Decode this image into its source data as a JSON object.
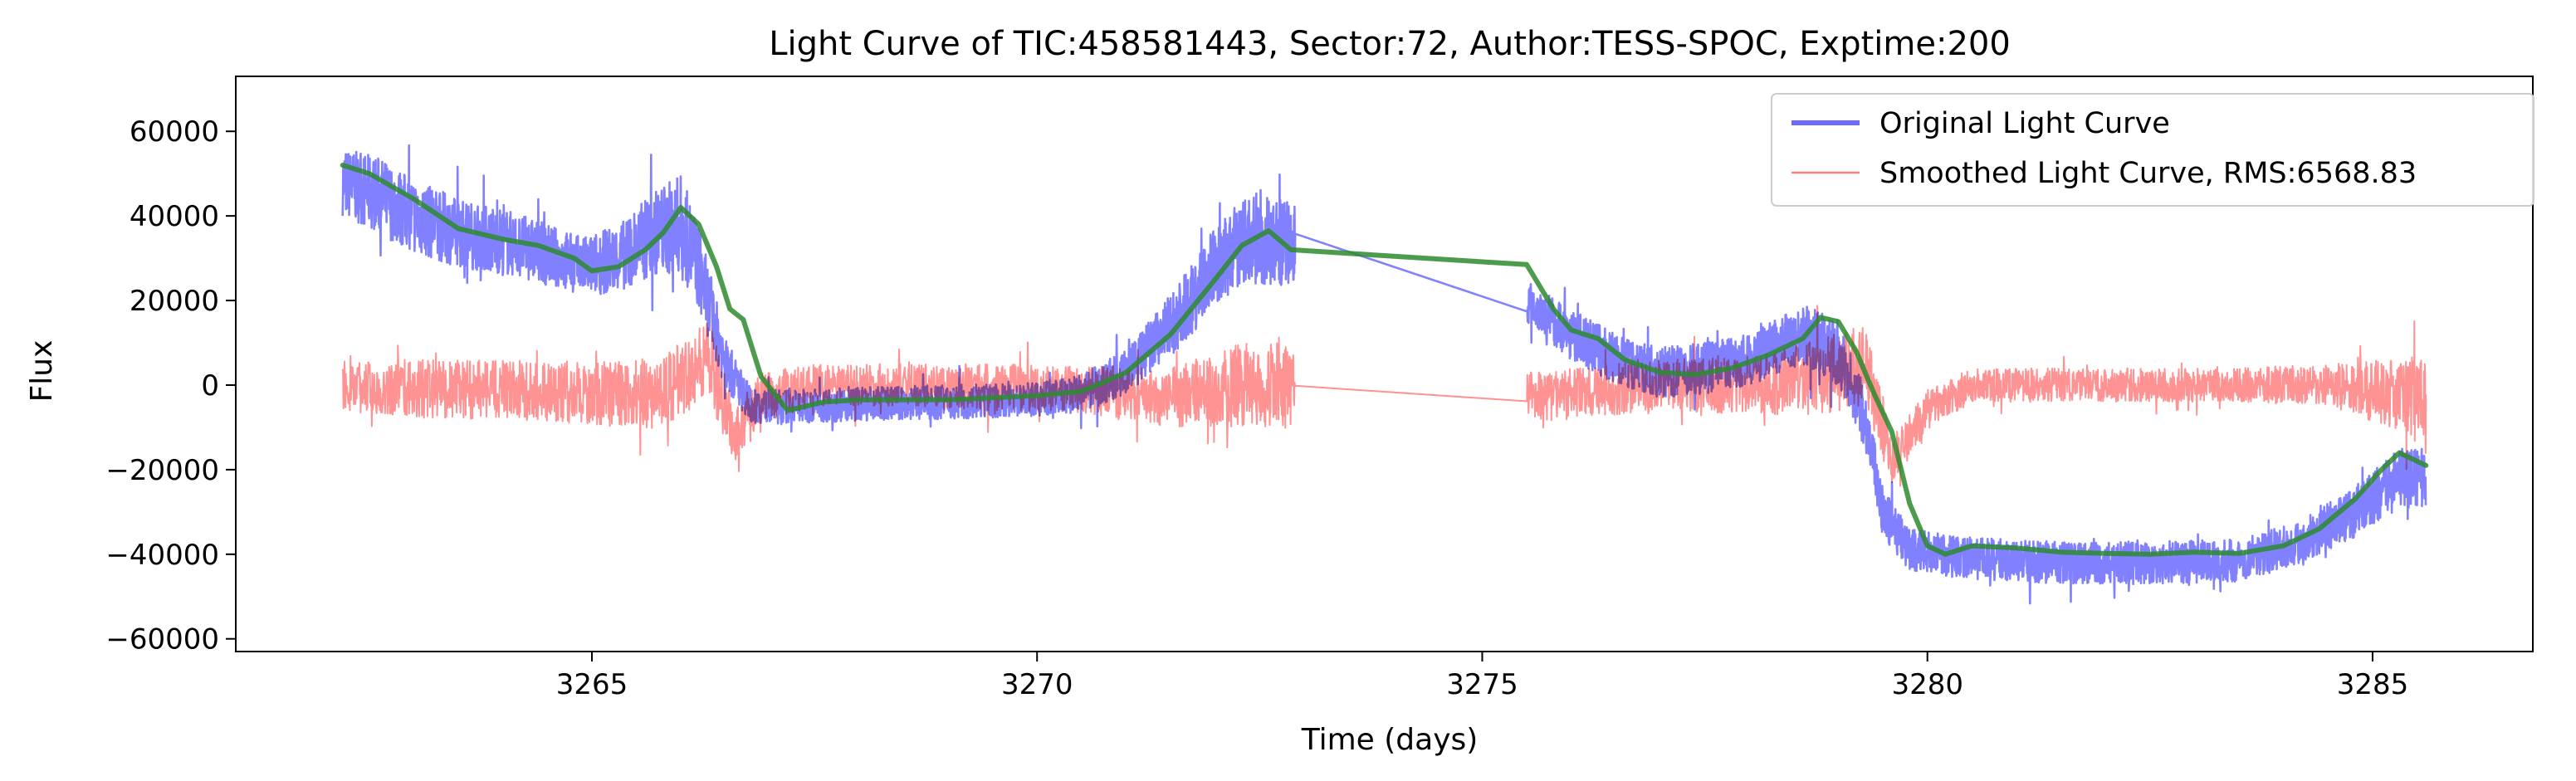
{
  "chart_data": {
    "type": "line",
    "title": "Light Curve of TIC:458581443, Sector:72, Author:TESS-SPOC, Exptime:200",
    "xlabel": "Time (days)",
    "ylabel": "Flux",
    "xlim": [
      3261.0,
      3286.8
    ],
    "ylim": [
      -63000,
      73000
    ],
    "xticks": [
      3265,
      3270,
      3275,
      3280,
      3285
    ],
    "xtick_labels": [
      "3265",
      "3270",
      "3275",
      "3280",
      "3285"
    ],
    "yticks": [
      -60000,
      -40000,
      -20000,
      0,
      20000,
      40000,
      60000
    ],
    "ytick_labels": [
      "−60000",
      "−40000",
      "−20000",
      "0",
      "20000",
      "40000",
      "60000"
    ],
    "grid": false,
    "legend_position": "top-right",
    "series": [
      {
        "name": "Original Light Curve",
        "color": "#6b6bff",
        "in_legend": true,
        "envelope": [
          [
            3262.2,
            48000,
            8000
          ],
          [
            3262.6,
            45000,
            9000
          ],
          [
            3263.0,
            40000,
            9000
          ],
          [
            3263.5,
            36000,
            8000
          ],
          [
            3264.0,
            34000,
            8000
          ],
          [
            3264.5,
            31000,
            7000
          ],
          [
            3264.9,
            28000,
            7000
          ],
          [
            3265.3,
            30000,
            8000
          ],
          [
            3265.7,
            36000,
            10000
          ],
          [
            3266.0,
            38000,
            12000
          ],
          [
            3266.2,
            28000,
            10000
          ],
          [
            3266.5,
            5000,
            6000
          ],
          [
            3266.8,
            -5000,
            4000
          ],
          [
            3267.2,
            -5000,
            4000
          ],
          [
            3268.0,
            -4500,
            4000
          ],
          [
            3269.0,
            -4000,
            4000
          ],
          [
            3270.0,
            -3500,
            4000
          ],
          [
            3270.5,
            -2000,
            4500
          ],
          [
            3271.0,
            3000,
            5500
          ],
          [
            3271.5,
            14000,
            7500
          ],
          [
            3272.0,
            28000,
            9000
          ],
          [
            3272.4,
            35000,
            11000
          ],
          [
            3272.9,
            33000,
            10000
          ],
          [
            3275.5,
            20000,
            5000
          ],
          [
            3276.0,
            12000,
            6000
          ],
          [
            3276.5,
            6000,
            6000
          ],
          [
            3277.0,
            3000,
            6000
          ],
          [
            3277.5,
            4000,
            6000
          ],
          [
            3278.0,
            6000,
            6000
          ],
          [
            3278.6,
            12000,
            7000
          ],
          [
            3279.0,
            8000,
            8000
          ],
          [
            3279.3,
            -8000,
            7000
          ],
          [
            3279.5,
            -30000,
            6000
          ],
          [
            3279.8,
            -39000,
            5000
          ],
          [
            3280.5,
            -41000,
            5000
          ],
          [
            3281.5,
            -42000,
            5000
          ],
          [
            3282.5,
            -42000,
            5000
          ],
          [
            3283.5,
            -41500,
            5000
          ],
          [
            3284.2,
            -37000,
            5000
          ],
          [
            3284.8,
            -30000,
            6000
          ],
          [
            3285.3,
            -22000,
            7000
          ],
          [
            3285.6,
            -22000,
            7000
          ]
        ]
      },
      {
        "name": "Smoothed Light Curve, RMS:6568.83",
        "color": "#ff7f7f",
        "in_legend": true,
        "envelope": [
          [
            3262.2,
            0,
            6000
          ],
          [
            3263.0,
            -1000,
            7000
          ],
          [
            3264.0,
            -1000,
            7000
          ],
          [
            3265.0,
            -2000,
            7500
          ],
          [
            3265.8,
            -2000,
            8500
          ],
          [
            3266.3,
            7000,
            9500
          ],
          [
            3266.6,
            -12000,
            6500
          ],
          [
            3266.9,
            -3000,
            6000
          ],
          [
            3267.5,
            0,
            5000
          ],
          [
            3268.5,
            0,
            5000
          ],
          [
            3269.5,
            -500,
            5500
          ],
          [
            3270.5,
            -1000,
            5500
          ],
          [
            3271.5,
            -3000,
            7000
          ],
          [
            3272.3,
            0,
            10000
          ],
          [
            3272.9,
            0,
            10000
          ],
          [
            3275.5,
            -3000,
            6000
          ],
          [
            3276.0,
            -2000,
            6000
          ],
          [
            3277.0,
            0,
            6000
          ],
          [
            3278.0,
            0,
            7000
          ],
          [
            3278.8,
            2000,
            9000
          ],
          [
            3279.3,
            5000,
            10000
          ],
          [
            3279.6,
            -18000,
            6000
          ],
          [
            3280.0,
            -6000,
            5000
          ],
          [
            3280.5,
            0,
            4000
          ],
          [
            3282.0,
            0,
            4000
          ],
          [
            3283.5,
            0,
            4000
          ],
          [
            3284.5,
            0,
            5000
          ],
          [
            3285.6,
            -3000,
            10000
          ]
        ]
      },
      {
        "name": "",
        "color": "#2e8b2e",
        "in_legend": false,
        "x": [
          3262.2,
          3262.5,
          3263.0,
          3263.5,
          3264.0,
          3264.4,
          3264.8,
          3265.0,
          3265.3,
          3265.6,
          3265.8,
          3266.0,
          3266.2,
          3266.4,
          3266.55,
          3266.7,
          3266.9,
          3267.2,
          3267.6,
          3268.0,
          3269.0,
          3270.0,
          3270.5,
          3271.0,
          3271.5,
          3272.0,
          3272.3,
          3272.6,
          3272.85,
          3275.5,
          3275.8,
          3276.0,
          3276.3,
          3276.6,
          3277.0,
          3277.4,
          3277.8,
          3278.2,
          3278.6,
          3278.8,
          3279.0,
          3279.2,
          3279.4,
          3279.6,
          3279.8,
          3280.0,
          3280.2,
          3280.5,
          3281.0,
          3281.5,
          3282.0,
          3282.5,
          3283.0,
          3283.5,
          3284.0,
          3284.4,
          3284.8,
          3285.1,
          3285.3,
          3285.6
        ],
        "y": [
          52000,
          50000,
          44000,
          37000,
          34500,
          33000,
          30000,
          27000,
          28000,
          32000,
          36000,
          42000,
          38000,
          28000,
          18000,
          15500,
          2000,
          -6000,
          -4000,
          -3500,
          -3500,
          -2500,
          -1500,
          3000,
          12000,
          25000,
          33000,
          36500,
          32000,
          28500,
          18000,
          13000,
          11000,
          6000,
          3000,
          2500,
          4000,
          7000,
          11000,
          16000,
          15000,
          8000,
          -2000,
          -11000,
          -28000,
          -38000,
          -40000,
          -38000,
          -38500,
          -39500,
          -39800,
          -40000,
          -39500,
          -39800,
          -38000,
          -34000,
          -27000,
          -20000,
          -16000,
          -19000
        ]
      }
    ]
  }
}
